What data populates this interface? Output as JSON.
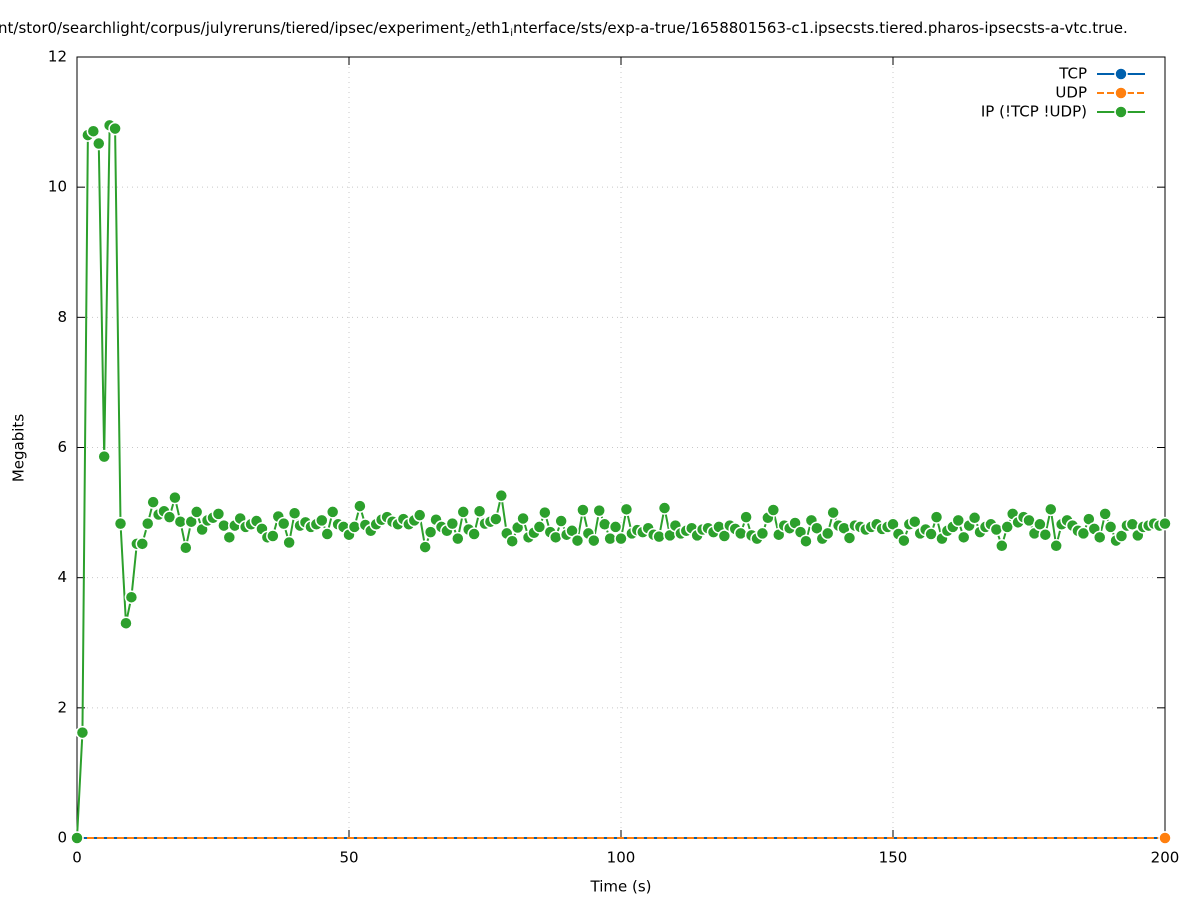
{
  "chart_data": {
    "type": "line",
    "title": [
      "nt/stor0/searchlight/corpus/julyreruns/tiered/ipsec/experiment",
      "2",
      "/eth1",
      "i",
      "nterface/sts/exp-a-true/1658801563-c1.ipsecsts.tiered.pharos-ipsecsts-a-vtc.true."
    ],
    "xlabel": "Time (s)",
    "ylabel": "Megabits",
    "xlim": [
      0,
      200
    ],
    "ylim": [
      0,
      12
    ],
    "xticks": [
      0,
      50,
      100,
      150,
      200
    ],
    "yticks": [
      0,
      2,
      4,
      6,
      8,
      10,
      12
    ],
    "grid": true,
    "legend": "top-right",
    "x": [
      0,
      1,
      2,
      3,
      4,
      5,
      6,
      7,
      8,
      9,
      10,
      11,
      12,
      13,
      14,
      15,
      16,
      17,
      18,
      19,
      20,
      21,
      22,
      23,
      24,
      25,
      26,
      27,
      28,
      29,
      30,
      31,
      32,
      33,
      34,
      35,
      36,
      37,
      38,
      39,
      40,
      41,
      42,
      43,
      44,
      45,
      46,
      47,
      48,
      49,
      50,
      51,
      52,
      53,
      54,
      55,
      56,
      57,
      58,
      59,
      60,
      61,
      62,
      63,
      64,
      65,
      66,
      67,
      68,
      69,
      70,
      71,
      72,
      73,
      74,
      75,
      76,
      77,
      78,
      79,
      80,
      81,
      82,
      83,
      84,
      85,
      86,
      87,
      88,
      89,
      90,
      91,
      92,
      93,
      94,
      95,
      96,
      97,
      98,
      99,
      100,
      101,
      102,
      103,
      104,
      105,
      106,
      107,
      108,
      109,
      110,
      111,
      112,
      113,
      114,
      115,
      116,
      117,
      118,
      119,
      120,
      121,
      122,
      123,
      124,
      125,
      126,
      127,
      128,
      129,
      130,
      131,
      132,
      133,
      134,
      135,
      136,
      137,
      138,
      139,
      140,
      141,
      142,
      143,
      144,
      145,
      146,
      147,
      148,
      149,
      150,
      151,
      152,
      153,
      154,
      155,
      156,
      157,
      158,
      159,
      160,
      161,
      162,
      163,
      164,
      165,
      166,
      167,
      168,
      169,
      170,
      171,
      172,
      173,
      174,
      175,
      176,
      177,
      178,
      179,
      180,
      181,
      182,
      183,
      184,
      185,
      186,
      187,
      188,
      189,
      190,
      191,
      192,
      193,
      194,
      195,
      196,
      197,
      198,
      199,
      200
    ],
    "series": [
      {
        "name": "TCP",
        "color": "#0060ad",
        "marker": "last",
        "dashed": false,
        "values": [
          0,
          0,
          0,
          0,
          0,
          0,
          0,
          0,
          0,
          0,
          0,
          0,
          0,
          0,
          0,
          0,
          0,
          0,
          0,
          0,
          0,
          0,
          0,
          0,
          0,
          0,
          0,
          0,
          0,
          0,
          0,
          0,
          0,
          0,
          0,
          0,
          0,
          0,
          0,
          0,
          0,
          0,
          0,
          0,
          0,
          0,
          0,
          0,
          0,
          0,
          0,
          0,
          0,
          0,
          0,
          0,
          0,
          0,
          0,
          0,
          0,
          0,
          0,
          0,
          0,
          0,
          0,
          0,
          0,
          0,
          0,
          0,
          0,
          0,
          0,
          0,
          0,
          0,
          0,
          0,
          0,
          0,
          0,
          0,
          0,
          0,
          0,
          0,
          0,
          0,
          0,
          0,
          0,
          0,
          0,
          0,
          0,
          0,
          0,
          0,
          0,
          0,
          0,
          0,
          0,
          0,
          0,
          0,
          0,
          0,
          0,
          0,
          0,
          0,
          0,
          0,
          0,
          0,
          0,
          0,
          0,
          0,
          0,
          0,
          0,
          0,
          0,
          0,
          0,
          0,
          0,
          0,
          0,
          0,
          0,
          0,
          0,
          0,
          0,
          0,
          0,
          0,
          0,
          0,
          0,
          0,
          0,
          0,
          0,
          0,
          0,
          0,
          0,
          0,
          0,
          0,
          0,
          0,
          0,
          0,
          0,
          0,
          0,
          0,
          0,
          0,
          0,
          0,
          0,
          0,
          0,
          0,
          0,
          0,
          0,
          0,
          0,
          0,
          0,
          0,
          0,
          0,
          0,
          0,
          0,
          0,
          0,
          0,
          0,
          0,
          0,
          0,
          0,
          0,
          0,
          0,
          0,
          0,
          0,
          0,
          0
        ]
      },
      {
        "name": "UDP",
        "color": "#ff7f0e",
        "marker": "last",
        "dashed": true,
        "values": [
          0,
          0,
          0,
          0,
          0,
          0,
          0,
          0,
          0,
          0,
          0,
          0,
          0,
          0,
          0,
          0,
          0,
          0,
          0,
          0,
          0,
          0,
          0,
          0,
          0,
          0,
          0,
          0,
          0,
          0,
          0,
          0,
          0,
          0,
          0,
          0,
          0,
          0,
          0,
          0,
          0,
          0,
          0,
          0,
          0,
          0,
          0,
          0,
          0,
          0,
          0,
          0,
          0,
          0,
          0,
          0,
          0,
          0,
          0,
          0,
          0,
          0,
          0,
          0,
          0,
          0,
          0,
          0,
          0,
          0,
          0,
          0,
          0,
          0,
          0,
          0,
          0,
          0,
          0,
          0,
          0,
          0,
          0,
          0,
          0,
          0,
          0,
          0,
          0,
          0,
          0,
          0,
          0,
          0,
          0,
          0,
          0,
          0,
          0,
          0,
          0,
          0,
          0,
          0,
          0,
          0,
          0,
          0,
          0,
          0,
          0,
          0,
          0,
          0,
          0,
          0,
          0,
          0,
          0,
          0,
          0,
          0,
          0,
          0,
          0,
          0,
          0,
          0,
          0,
          0,
          0,
          0,
          0,
          0,
          0,
          0,
          0,
          0,
          0,
          0,
          0,
          0,
          0,
          0,
          0,
          0,
          0,
          0,
          0,
          0,
          0,
          0,
          0,
          0,
          0,
          0,
          0,
          0,
          0,
          0,
          0,
          0,
          0,
          0,
          0,
          0,
          0,
          0,
          0,
          0,
          0,
          0,
          0,
          0,
          0,
          0,
          0,
          0,
          0,
          0,
          0,
          0,
          0,
          0,
          0,
          0,
          0,
          0,
          0,
          0,
          0,
          0,
          0,
          0,
          0,
          0,
          0,
          0,
          0,
          0,
          0
        ]
      },
      {
        "name": "IP (!TCP  !UDP)",
        "color": "#2ca02c",
        "marker": "all",
        "dashed": false,
        "values": [
          0,
          1.62,
          10.8,
          10.86,
          10.67,
          5.86,
          10.95,
          10.9,
          4.83,
          3.3,
          3.7,
          4.52,
          4.52,
          4.83,
          5.16,
          4.97,
          5.02,
          4.93,
          5.23,
          4.86,
          4.46,
          4.86,
          5.01,
          4.74,
          4.88,
          4.92,
          4.98,
          4.8,
          4.62,
          4.8,
          4.91,
          4.78,
          4.82,
          4.87,
          4.75,
          4.62,
          4.64,
          4.94,
          4.83,
          4.54,
          4.99,
          4.8,
          4.85,
          4.78,
          4.82,
          4.88,
          4.67,
          5.01,
          4.82,
          4.78,
          4.66,
          4.78,
          5.1,
          4.81,
          4.72,
          4.82,
          4.89,
          4.93,
          4.86,
          4.82,
          4.9,
          4.82,
          4.88,
          4.96,
          4.47,
          4.7,
          4.89,
          4.78,
          4.72,
          4.83,
          4.6,
          5.01,
          4.74,
          4.67,
          5.02,
          4.83,
          4.86,
          4.9,
          5.26,
          4.68,
          4.56,
          4.77,
          4.91,
          4.62,
          4.69,
          4.78,
          5.0,
          4.7,
          4.62,
          4.87,
          4.66,
          4.72,
          4.57,
          5.04,
          4.68,
          4.57,
          5.03,
          4.82,
          4.6,
          4.78,
          4.6,
          5.05,
          4.68,
          4.73,
          4.7,
          4.76,
          4.66,
          4.63,
          5.07,
          4.65,
          4.8,
          4.68,
          4.72,
          4.76,
          4.65,
          4.74,
          4.76,
          4.7,
          4.78,
          4.64,
          4.8,
          4.75,
          4.68,
          4.93,
          4.65,
          4.6,
          4.68,
          4.92,
          5.04,
          4.66,
          4.8,
          4.76,
          4.84,
          4.7,
          4.56,
          4.88,
          4.76,
          4.6,
          4.68,
          5.0,
          4.8,
          4.76,
          4.61,
          4.8,
          4.78,
          4.74,
          4.78,
          4.82,
          4.75,
          4.78,
          4.82,
          4.67,
          4.57,
          4.82,
          4.86,
          4.68,
          4.74,
          4.67,
          4.93,
          4.6,
          4.72,
          4.78,
          4.88,
          4.62,
          4.8,
          4.92,
          4.7,
          4.78,
          4.82,
          4.74,
          4.49,
          4.78,
          4.98,
          4.85,
          4.93,
          4.88,
          4.68,
          4.82,
          4.66,
          5.05,
          4.49,
          4.82,
          4.88,
          4.8,
          4.72,
          4.68,
          4.9,
          4.75,
          4.62,
          4.98,
          4.78,
          4.57,
          4.64,
          4.8,
          4.82,
          4.65,
          4.78,
          4.8,
          4.83,
          4.8,
          4.83
        ]
      }
    ]
  }
}
